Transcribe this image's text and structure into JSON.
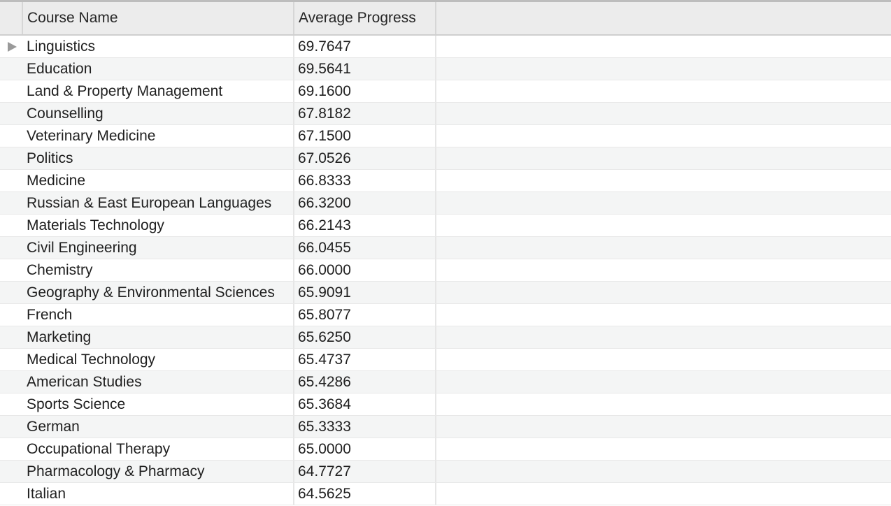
{
  "table": {
    "columns": [
      "Course Name",
      "Average Progress"
    ],
    "selected_row_indicator": "right-triangle-icon",
    "rows": [
      {
        "course": "Linguistics",
        "progress": "69.7647"
      },
      {
        "course": "Education",
        "progress": "69.5641"
      },
      {
        "course": "Land & Property Management",
        "progress": "69.1600"
      },
      {
        "course": "Counselling",
        "progress": "67.8182"
      },
      {
        "course": "Veterinary Medicine",
        "progress": "67.1500"
      },
      {
        "course": "Politics",
        "progress": "67.0526"
      },
      {
        "course": "Medicine",
        "progress": "66.8333"
      },
      {
        "course": "Russian & East European Languages",
        "progress": "66.3200"
      },
      {
        "course": "Materials Technology",
        "progress": "66.2143"
      },
      {
        "course": "Civil Engineering",
        "progress": "66.0455"
      },
      {
        "course": "Chemistry",
        "progress": "66.0000"
      },
      {
        "course": "Geography & Environmental Sciences",
        "progress": "65.9091"
      },
      {
        "course": "French",
        "progress": "65.8077"
      },
      {
        "course": "Marketing",
        "progress": "65.6250"
      },
      {
        "course": "Medical Technology",
        "progress": "65.4737"
      },
      {
        "course": "American Studies",
        "progress": "65.4286"
      },
      {
        "course": "Sports Science",
        "progress": "65.3684"
      },
      {
        "course": "German",
        "progress": "65.3333"
      },
      {
        "course": "Occupational Therapy",
        "progress": "65.0000"
      },
      {
        "course": "Pharmacology & Pharmacy",
        "progress": "64.7727"
      },
      {
        "course": "Italian",
        "progress": "64.5625"
      }
    ]
  }
}
